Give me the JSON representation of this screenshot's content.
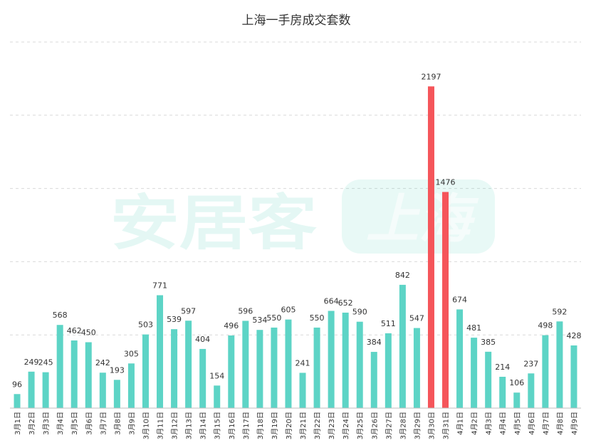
{
  "chart_data": {
    "type": "bar",
    "title": "上海一手房成交套数",
    "xlabel": "",
    "ylabel": "",
    "ylim": [
      0,
      2500
    ],
    "grid": true,
    "categories": [
      "3月1日",
      "3月2日",
      "3月3日",
      "3月4日",
      "3月5日",
      "3月6日",
      "3月7日",
      "3月8日",
      "3月9日",
      "3月10日",
      "3月11日",
      "3月12日",
      "3月13日",
      "3月14日",
      "3月15日",
      "3月16日",
      "3月17日",
      "3月18日",
      "3月19日",
      "3月20日",
      "3月21日",
      "3月22日",
      "3月23日",
      "3月24日",
      "3月25日",
      "3月26日",
      "3月27日",
      "3月28日",
      "3月29日",
      "3月30日",
      "3月31日",
      "4月1日",
      "4月2日",
      "4月3日",
      "4月4日",
      "4月5日",
      "4月6日",
      "4月7日",
      "4月8日",
      "4月9日"
    ],
    "values": [
      96,
      249,
      245,
      568,
      462,
      450,
      242,
      193,
      305,
      503,
      771,
      539,
      597,
      404,
      154,
      496,
      596,
      534,
      550,
      605,
      241,
      550,
      664,
      652,
      590,
      384,
      511,
      842,
      547,
      2197,
      1476,
      674,
      481,
      385,
      214,
      106,
      237,
      498,
      592,
      428
    ],
    "highlighted_categories": [
      "3月30日",
      "3月31日"
    ],
    "colors": {
      "bar": "#5dd4c6",
      "highlight": "#f5555a"
    }
  },
  "watermark": {
    "brand": "安居客",
    "city": "上海"
  }
}
